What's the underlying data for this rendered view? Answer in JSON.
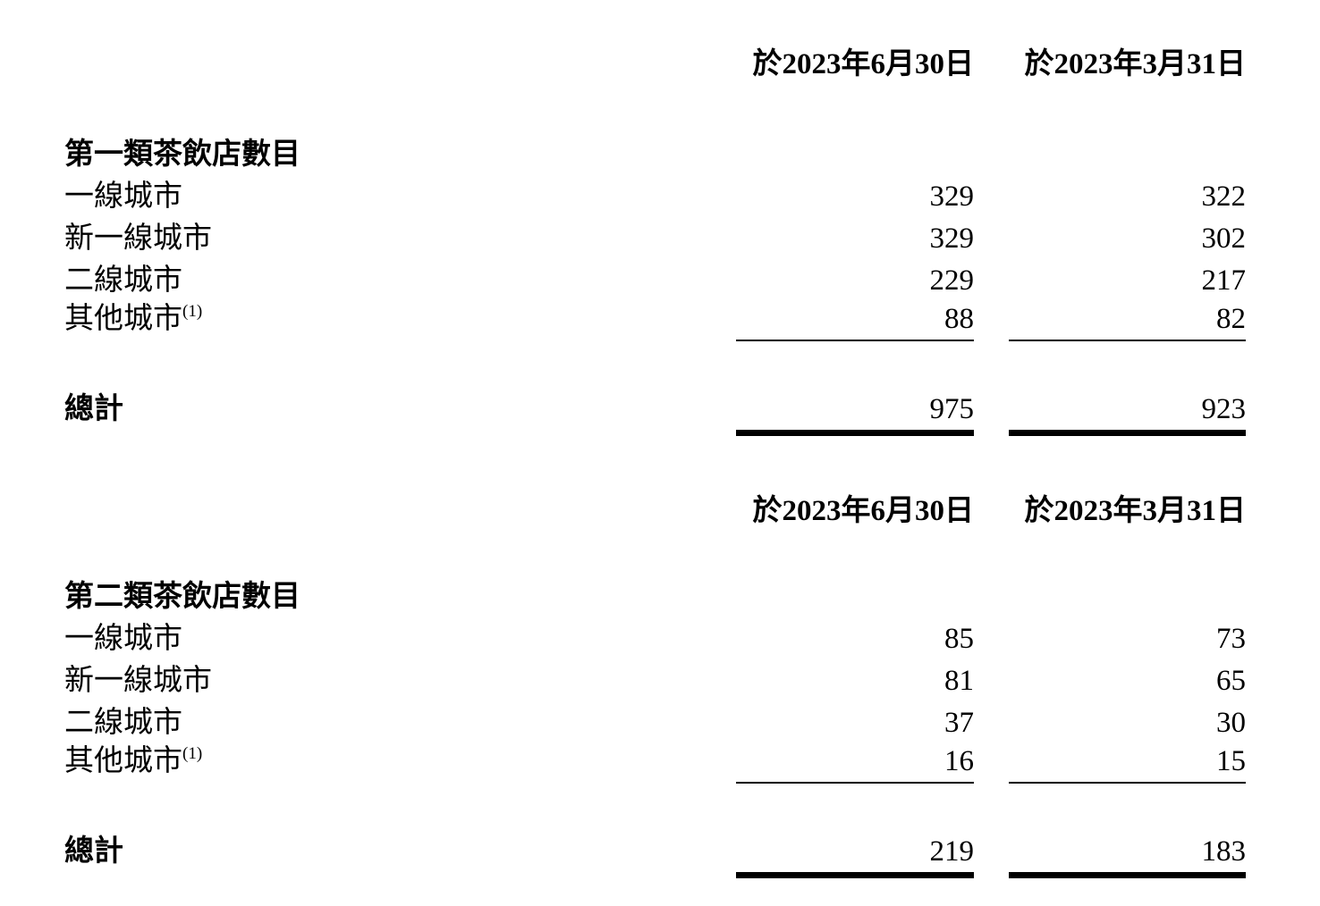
{
  "page": {
    "background_color": "#ffffff",
    "text_color": "#000000"
  },
  "sections": [
    {
      "col_headers": [
        "於2023年6月30日",
        "於2023年3月31日"
      ],
      "title": "第一類茶飲店數目",
      "rows": [
        {
          "label": "一線城市",
          "sup": "",
          "values": [
            "329",
            "322"
          ]
        },
        {
          "label": "新一線城市",
          "sup": "",
          "values": [
            "329",
            "302"
          ]
        },
        {
          "label": "二線城市",
          "sup": "",
          "values": [
            "229",
            "217"
          ]
        },
        {
          "label": "其他城市",
          "sup": "(1)",
          "values": [
            "88",
            "82"
          ]
        }
      ],
      "total": {
        "label": "總計",
        "values": [
          "975",
          "923"
        ]
      }
    },
    {
      "col_headers": [
        "於2023年6月30日",
        "於2023年3月31日"
      ],
      "title": "第二類茶飲店數目",
      "rows": [
        {
          "label": "一線城市",
          "sup": "",
          "values": [
            "85",
            "73"
          ]
        },
        {
          "label": "新一線城市",
          "sup": "",
          "values": [
            "81",
            "65"
          ]
        },
        {
          "label": "二線城市",
          "sup": "",
          "values": [
            "37",
            "30"
          ]
        },
        {
          "label": "其他城市",
          "sup": "(1)",
          "values": [
            "16",
            "15"
          ]
        }
      ],
      "total": {
        "label": "總計",
        "values": [
          "219",
          "183"
        ]
      }
    }
  ]
}
